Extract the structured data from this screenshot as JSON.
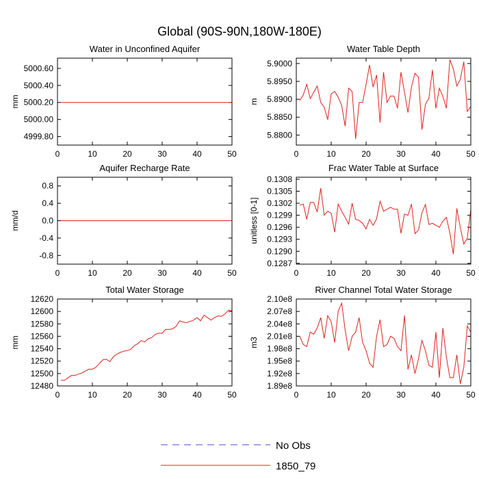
{
  "figure_title": "Global (90S-90N,180W-180E)",
  "legend": {
    "entries": [
      {
        "label": "No Obs",
        "color": "#4b4bd1",
        "style": "dashed"
      },
      {
        "label": "1850_79",
        "color": "#e0201b",
        "style": "solid"
      }
    ]
  },
  "chart_data": [
    {
      "type": "line",
      "title": "Water in Unconfined Aquifer",
      "xlabel": "",
      "ylabel": "mm",
      "xlim": [
        0,
        50
      ],
      "ylim": [
        4999.7,
        5000.72
      ],
      "xticks": [
        0,
        10,
        20,
        30,
        40,
        50
      ],
      "yticks": [
        4999.8,
        5000.0,
        5000.2,
        5000.4,
        5000.6
      ],
      "ytick_labels": [
        "4999.80",
        "5000.00",
        "5000.20",
        "5000.40",
        "5000.60"
      ],
      "series": [
        {
          "name": "1850_79",
          "color": "#e0201b",
          "x": [
            1,
            50
          ],
          "y": [
            5000.2,
            5000.2
          ]
        }
      ]
    },
    {
      "type": "line",
      "title": "Water Table Depth",
      "xlabel": "",
      "ylabel": "m",
      "xlim": [
        0,
        50
      ],
      "ylim": [
        5.8772,
        5.9015
      ],
      "xticks": [
        0,
        10,
        20,
        30,
        40,
        50
      ],
      "yticks": [
        5.88,
        5.885,
        5.89,
        5.895,
        5.9
      ],
      "ytick_labels": [
        "5.8800",
        "5.8850",
        "5.8900",
        "5.8950",
        "5.9000"
      ],
      "series": [
        {
          "name": "1850_79",
          "color": "#e0201b",
          "x": [
            1,
            2,
            3,
            4,
            5,
            6,
            7,
            8,
            9,
            10,
            11,
            12,
            13,
            14,
            15,
            16,
            17,
            18,
            19,
            20,
            21,
            22,
            23,
            24,
            25,
            26,
            27,
            28,
            29,
            30,
            31,
            32,
            33,
            34,
            35,
            36,
            37,
            38,
            39,
            40,
            41,
            42,
            43,
            44,
            45,
            46,
            47,
            48,
            49,
            50
          ],
          "y": [
            5.8897,
            5.8912,
            5.8942,
            5.8902,
            5.892,
            5.8937,
            5.8891,
            5.8878,
            5.8843,
            5.8915,
            5.8922,
            5.8906,
            5.8883,
            5.8825,
            5.8931,
            5.8922,
            5.8789,
            5.8891,
            5.8891,
            5.8942,
            5.8996,
            5.8934,
            5.8968,
            5.8835,
            5.8976,
            5.8891,
            5.8909,
            5.8909,
            5.8875,
            5.8976,
            5.892,
            5.8863,
            5.8934,
            5.8973,
            5.8962,
            5.8815,
            5.8886,
            5.8903,
            5.8982,
            5.8875,
            5.8931,
            5.8908,
            5.8875,
            5.9011,
            5.8985,
            5.8937,
            5.8956,
            5.9005,
            5.8866,
            5.888
          ]
        }
      ]
    },
    {
      "type": "line",
      "title": "Aquifer Recharge Rate",
      "xlabel": "",
      "ylabel": "mm/d",
      "xlim": [
        0,
        50
      ],
      "ylim": [
        -1.0,
        1.0
      ],
      "xticks": [
        0,
        10,
        20,
        30,
        40,
        50
      ],
      "yticks": [
        -0.8,
        -0.4,
        0.0,
        0.4,
        0.8
      ],
      "ytick_labels": [
        "-0.8",
        "-0.4",
        "0.0",
        "0.4",
        "0.8"
      ],
      "series": [
        {
          "name": "1850_79",
          "color": "#e0201b",
          "x": [
            1,
            50
          ],
          "y": [
            0.0,
            0.0
          ]
        }
      ]
    },
    {
      "type": "line",
      "title": "Frac Water Table at Surface",
      "xlabel": "",
      "ylabel": "unitless [0-1]",
      "xlim": [
        0,
        50
      ],
      "ylim": [
        0.12868,
        0.13085
      ],
      "xticks": [
        0,
        10,
        20,
        30,
        40,
        50
      ],
      "yticks": [
        0.1287,
        0.129,
        0.1293,
        0.1296,
        0.1299,
        0.1302,
        0.1305,
        0.1308
      ],
      "ytick_labels": [
        "0.1287",
        "0.1290",
        "0.1293",
        "0.1296",
        "0.1299",
        "0.1302",
        "0.1305",
        "0.1308"
      ],
      "series": [
        {
          "name": "1850_79",
          "color": "#e0201b",
          "x": [
            1,
            2,
            3,
            4,
            5,
            6,
            7,
            8,
            9,
            10,
            11,
            12,
            13,
            14,
            15,
            16,
            17,
            18,
            19,
            20,
            21,
            22,
            23,
            24,
            25,
            26,
            27,
            28,
            29,
            30,
            31,
            32,
            33,
            34,
            35,
            36,
            37,
            38,
            39,
            40,
            41,
            42,
            43,
            44,
            45,
            46,
            47,
            48,
            49,
            50
          ],
          "y": [
            0.13015,
            0.13018,
            0.1298,
            0.13022,
            0.13022,
            0.12998,
            0.13058,
            0.1299,
            0.13,
            0.12995,
            0.12948,
            0.13018,
            0.13,
            0.12985,
            0.12968,
            0.1302,
            0.1298,
            0.12977,
            0.1297,
            0.12956,
            0.1298,
            0.12965,
            0.12981,
            0.13025,
            0.13,
            0.13005,
            0.1301,
            0.13005,
            0.13005,
            0.12945,
            0.12993,
            0.1299,
            0.13018,
            0.12944,
            0.12953,
            0.12996,
            0.13017,
            0.12967,
            0.1297,
            0.12965,
            0.1296,
            0.12975,
            0.12985,
            0.12946,
            0.12893,
            0.13007,
            0.12959,
            0.12918,
            0.12933,
            0.13005
          ]
        }
      ]
    },
    {
      "type": "line",
      "title": "Total Water Storage",
      "xlabel": "",
      "ylabel": "mm",
      "xlim": [
        0,
        50
      ],
      "ylim": [
        12480,
        12620
      ],
      "xticks": [
        0,
        10,
        20,
        30,
        40,
        50
      ],
      "yticks": [
        12480,
        12500,
        12520,
        12540,
        12560,
        12580,
        12600,
        12620
      ],
      "ytick_labels": [
        "12480",
        "12500",
        "12520",
        "12540",
        "12560",
        "12580",
        "12600",
        "12620"
      ],
      "series": [
        {
          "name": "1850_79",
          "color": "#e0201b",
          "x": [
            1,
            2,
            3,
            4,
            5,
            6,
            7,
            8,
            9,
            10,
            11,
            12,
            13,
            14,
            15,
            16,
            17,
            18,
            19,
            20,
            21,
            22,
            23,
            24,
            25,
            26,
            27,
            28,
            29,
            30,
            31,
            32,
            33,
            34,
            35,
            36,
            37,
            38,
            39,
            40,
            41,
            42,
            43,
            44,
            45,
            46,
            47,
            48,
            49,
            50
          ],
          "y": [
            12489,
            12489,
            12493,
            12497,
            12497,
            12499,
            12501,
            12504,
            12507,
            12507,
            12510,
            12516,
            12522,
            12523,
            12519,
            12527,
            12531,
            12534,
            12536,
            12537,
            12539,
            12545,
            12548,
            12553,
            12551,
            12556,
            12558,
            12563,
            12565,
            12565,
            12571,
            12571,
            12572,
            12576,
            12585,
            12583,
            12582,
            12584,
            12586,
            12590,
            12585,
            12594,
            12590,
            12586,
            12590,
            12593,
            12592,
            12596,
            12602,
            12601
          ]
        }
      ]
    },
    {
      "type": "line",
      "title": "River Channel Total Water Storage",
      "xlabel": "",
      "ylabel": "m3",
      "xlim": [
        0,
        50
      ],
      "ylim": [
        189000000.0,
        210000000.0
      ],
      "xticks": [
        0,
        10,
        20,
        30,
        40,
        50
      ],
      "yticks": [
        189000000.0,
        192000000.0,
        195000000.0,
        198000000.0,
        201000000.0,
        204000000.0,
        207000000.0,
        210000000.0
      ],
      "ytick_labels": [
        "1.89e8",
        "1.92e8",
        "1.95e8",
        "1.98e8",
        "2.01e8",
        "2.04e8",
        "2.07e8",
        "2.10e8"
      ],
      "series": [
        {
          "name": "1850_79",
          "color": "#e0201b",
          "x": [
            1,
            2,
            3,
            4,
            5,
            6,
            7,
            8,
            9,
            10,
            11,
            12,
            13,
            14,
            15,
            16,
            17,
            18,
            19,
            20,
            21,
            22,
            23,
            24,
            25,
            26,
            27,
            28,
            29,
            30,
            31,
            32,
            33,
            34,
            35,
            36,
            37,
            38,
            39,
            40,
            41,
            42,
            43,
            44,
            45,
            46,
            47,
            48,
            49,
            50
          ],
          "y": [
            201000000.0,
            199000000.0,
            198500000.0,
            202000000.0,
            201500000.0,
            203000000.0,
            205500000.0,
            200500000.0,
            206000000.0,
            204500000.0,
            199500000.0,
            207000000.0,
            209000000.0,
            202500000.0,
            197500000.0,
            201000000.0,
            202000000.0,
            205500000.0,
            199500000.0,
            197500000.0,
            194500000.0,
            193500000.0,
            201000000.0,
            205000000.0,
            198500000.0,
            199000000.0,
            201000000.0,
            200500000.0,
            198500000.0,
            197500000.0,
            206000000.0,
            193000000.0,
            196500000.0,
            192000000.0,
            195500000.0,
            200000000.0,
            197500000.0,
            194000000.0,
            193500000.0,
            202000000.0,
            191000000.0,
            203000000.0,
            196000000.0,
            191000000.0,
            191000000.0,
            196500000.0,
            189500000.0,
            193500000.0,
            203500000.0,
            202000000.0
          ]
        }
      ]
    }
  ]
}
